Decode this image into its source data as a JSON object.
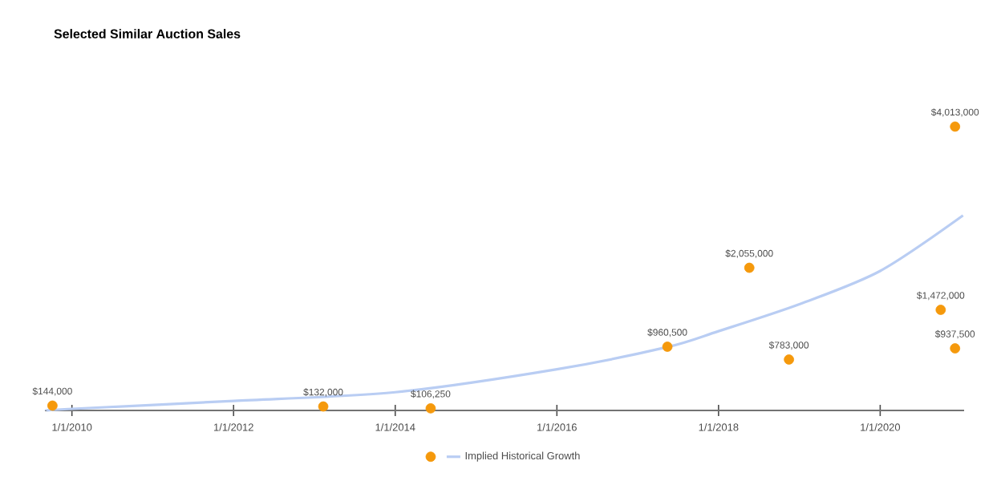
{
  "chart_data": {
    "type": "scatter",
    "title": "Selected Similar Auction Sales",
    "series": [
      {
        "color": "#f5990c",
        "marker": "circle",
        "x": [
          "2009-10-05",
          "2013-02-10",
          "2014-06-10",
          "2017-05-15",
          "2018-05-20",
          "2018-11-15",
          "2020-10-01",
          "2020-12-05",
          "2020-12-05"
        ],
        "values": [
          144000,
          132000,
          106250,
          960500,
          2055000,
          783000,
          1472000,
          937500,
          4013000
        ],
        "value_labels": [
          "$144,000",
          "$132,000",
          "$106,250",
          "$960,500",
          "$2,055,000",
          "$783,000",
          "$1,472,000",
          "$937,500",
          "$4,013,000"
        ]
      },
      {
        "type": "line",
        "name": "Implied Historical Growth",
        "color": "#b9cdf3",
        "x": [
          "2009-09-05",
          "2010-01-01",
          "2012-01-01",
          "2014-01-01",
          "2016-01-01",
          "2017-05-15",
          "2018-01-01",
          "2019-01-01",
          "2020-01-01",
          "2021-01-10"
        ],
        "values": [
          77000,
          99000,
          209000,
          330000,
          648000,
          956000,
          1176000,
          1550000,
          2011000,
          2780000
        ]
      }
    ],
    "xlim": [
      "2009-09-01",
      "2021-01-15"
    ],
    "xticks": [
      {
        "value": "2010-01-01",
        "label": "1/1/2010"
      },
      {
        "value": "2012-01-01",
        "label": "1/1/2012"
      },
      {
        "value": "2014-01-01",
        "label": "1/1/2014"
      },
      {
        "value": "2016-01-01",
        "label": "1/1/2016"
      },
      {
        "value": "2018-01-01",
        "label": "1/1/2018"
      },
      {
        "value": "2020-01-01",
        "label": "1/1/2020"
      }
    ],
    "tick_labels": "x",
    "legend": "bottom"
  }
}
